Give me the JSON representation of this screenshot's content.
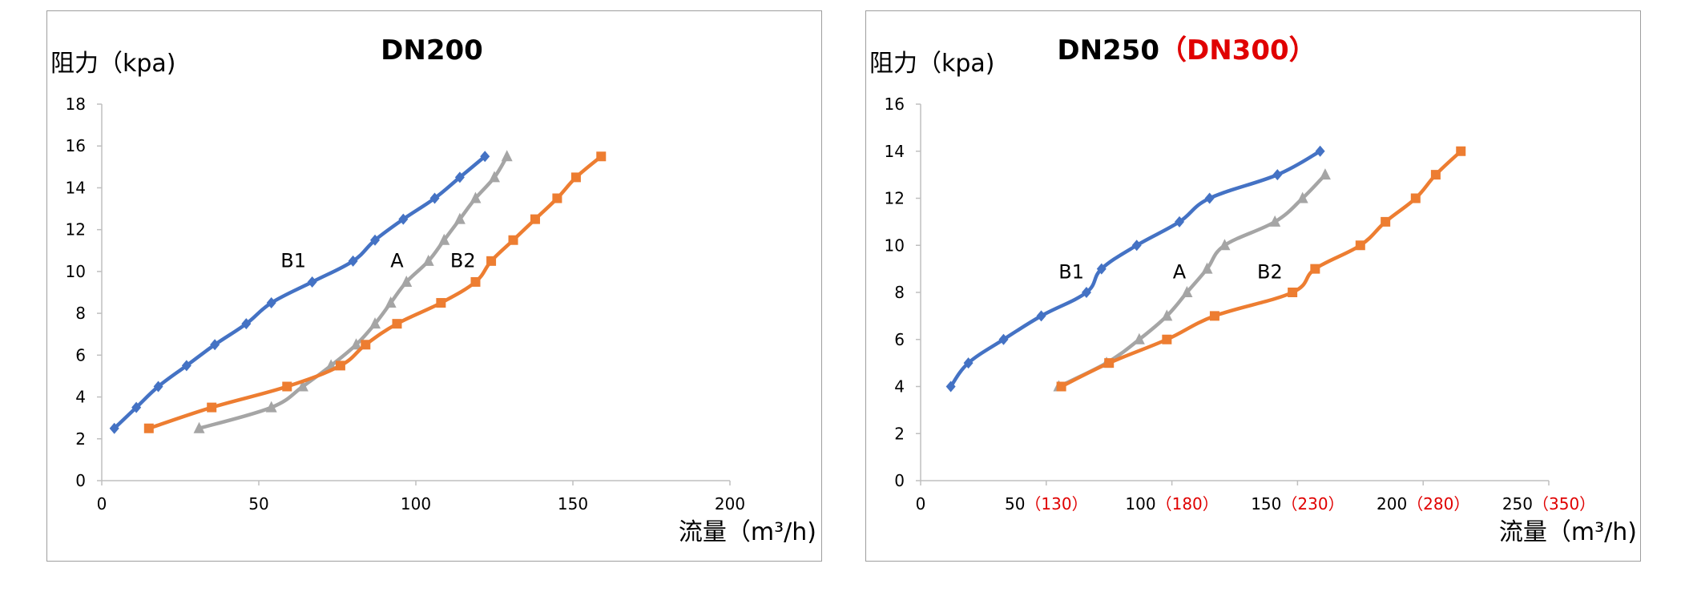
{
  "chart_data": [
    {
      "type": "line",
      "title": "DN200",
      "ylabel": "阻力（kpa)",
      "xlabel": "流量（m³/h)",
      "xlim": [
        0,
        200
      ],
      "ylim": [
        0,
        18
      ],
      "x_ticks": [
        "0",
        "50",
        "100",
        "150",
        "200"
      ],
      "x_tick_values": [
        0,
        50,
        100,
        150,
        200
      ],
      "y_ticks": [
        0,
        2,
        4,
        6,
        8,
        10,
        12,
        14,
        16,
        18
      ],
      "grid": false,
      "series": [
        {
          "name": "B1",
          "color": "#4472c4",
          "marker": "diamond",
          "x": [
            4,
            11,
            18,
            27,
            36,
            46,
            54,
            67,
            80,
            87,
            96,
            106,
            114,
            122
          ],
          "y": [
            2.5,
            3.5,
            4.5,
            5.5,
            6.5,
            7.5,
            8.5,
            9.5,
            10.5,
            11.5,
            12.5,
            13.5,
            14.5,
            15.5
          ],
          "label_at": [
            61,
            10.2
          ]
        },
        {
          "name": "A",
          "color": "#a5a5a5",
          "marker": "triangle",
          "x": [
            31,
            54,
            64,
            73,
            81,
            87,
            92,
            97,
            104,
            109,
            114,
            119,
            125,
            129
          ],
          "y": [
            2.5,
            3.5,
            4.5,
            5.5,
            6.5,
            7.5,
            8.5,
            9.5,
            10.5,
            11.5,
            12.5,
            13.5,
            14.5,
            15.5
          ],
          "label_at": [
            94,
            10.2
          ]
        },
        {
          "name": "B2",
          "color": "#ed7d31",
          "marker": "square",
          "x": [
            15,
            35,
            59,
            76,
            84,
            94,
            108,
            119,
            124,
            131,
            138,
            145,
            151,
            159
          ],
          "y": [
            2.5,
            3.5,
            4.5,
            5.5,
            6.5,
            7.5,
            8.5,
            9.5,
            10.5,
            11.5,
            12.5,
            13.5,
            14.5,
            15.5
          ],
          "label_at": [
            115,
            10.2
          ]
        }
      ]
    },
    {
      "type": "line",
      "title": "DN250",
      "title_suffix_open": "（",
      "title_red": "DN300",
      "title_suffix_close": "）",
      "ylabel": "阻力（kpa)",
      "xlabel": "流量（m³/h)",
      "xlim": [
        0,
        250
      ],
      "ylim": [
        0,
        16
      ],
      "x_ticks": [
        {
          "value": 0,
          "label": "0",
          "red": ""
        },
        {
          "value": 50,
          "label": "50",
          "red": "（130）"
        },
        {
          "value": 100,
          "label": "100",
          "red": "（180）"
        },
        {
          "value": 150,
          "label": "150",
          "red": "（230）"
        },
        {
          "value": 200,
          "label": "200",
          "red": "（280）"
        },
        {
          "value": 250,
          "label": "250",
          "red": "（350）"
        }
      ],
      "y_ticks": [
        0,
        2,
        4,
        6,
        8,
        10,
        12,
        14,
        16
      ],
      "grid": false,
      "series": [
        {
          "name": "B1",
          "color": "#4472c4",
          "marker": "diamond",
          "x": [
            12,
            19,
            33,
            48,
            66,
            72,
            86,
            103,
            115,
            142,
            159
          ],
          "y": [
            4,
            5,
            6,
            7,
            8,
            9,
            10,
            11,
            12,
            13,
            14
          ],
          "label_at": [
            60,
            8.6
          ]
        },
        {
          "name": "A",
          "color": "#a5a5a5",
          "marker": "triangle",
          "x": [
            55,
            74,
            87,
            98,
            106,
            114,
            121,
            141,
            152,
            161
          ],
          "y": [
            4,
            5,
            6,
            7,
            8,
            9,
            10,
            11,
            12,
            13
          ],
          "label_at": [
            103,
            8.6
          ]
        },
        {
          "name": "B2",
          "color": "#ed7d31",
          "marker": "square",
          "x": [
            56,
            75,
            98,
            117,
            148,
            157,
            175,
            185,
            197,
            205,
            215
          ],
          "y": [
            4,
            5,
            6,
            7,
            8,
            9,
            10,
            11,
            12,
            13,
            14
          ],
          "label_at": [
            139,
            8.6
          ]
        }
      ]
    }
  ]
}
